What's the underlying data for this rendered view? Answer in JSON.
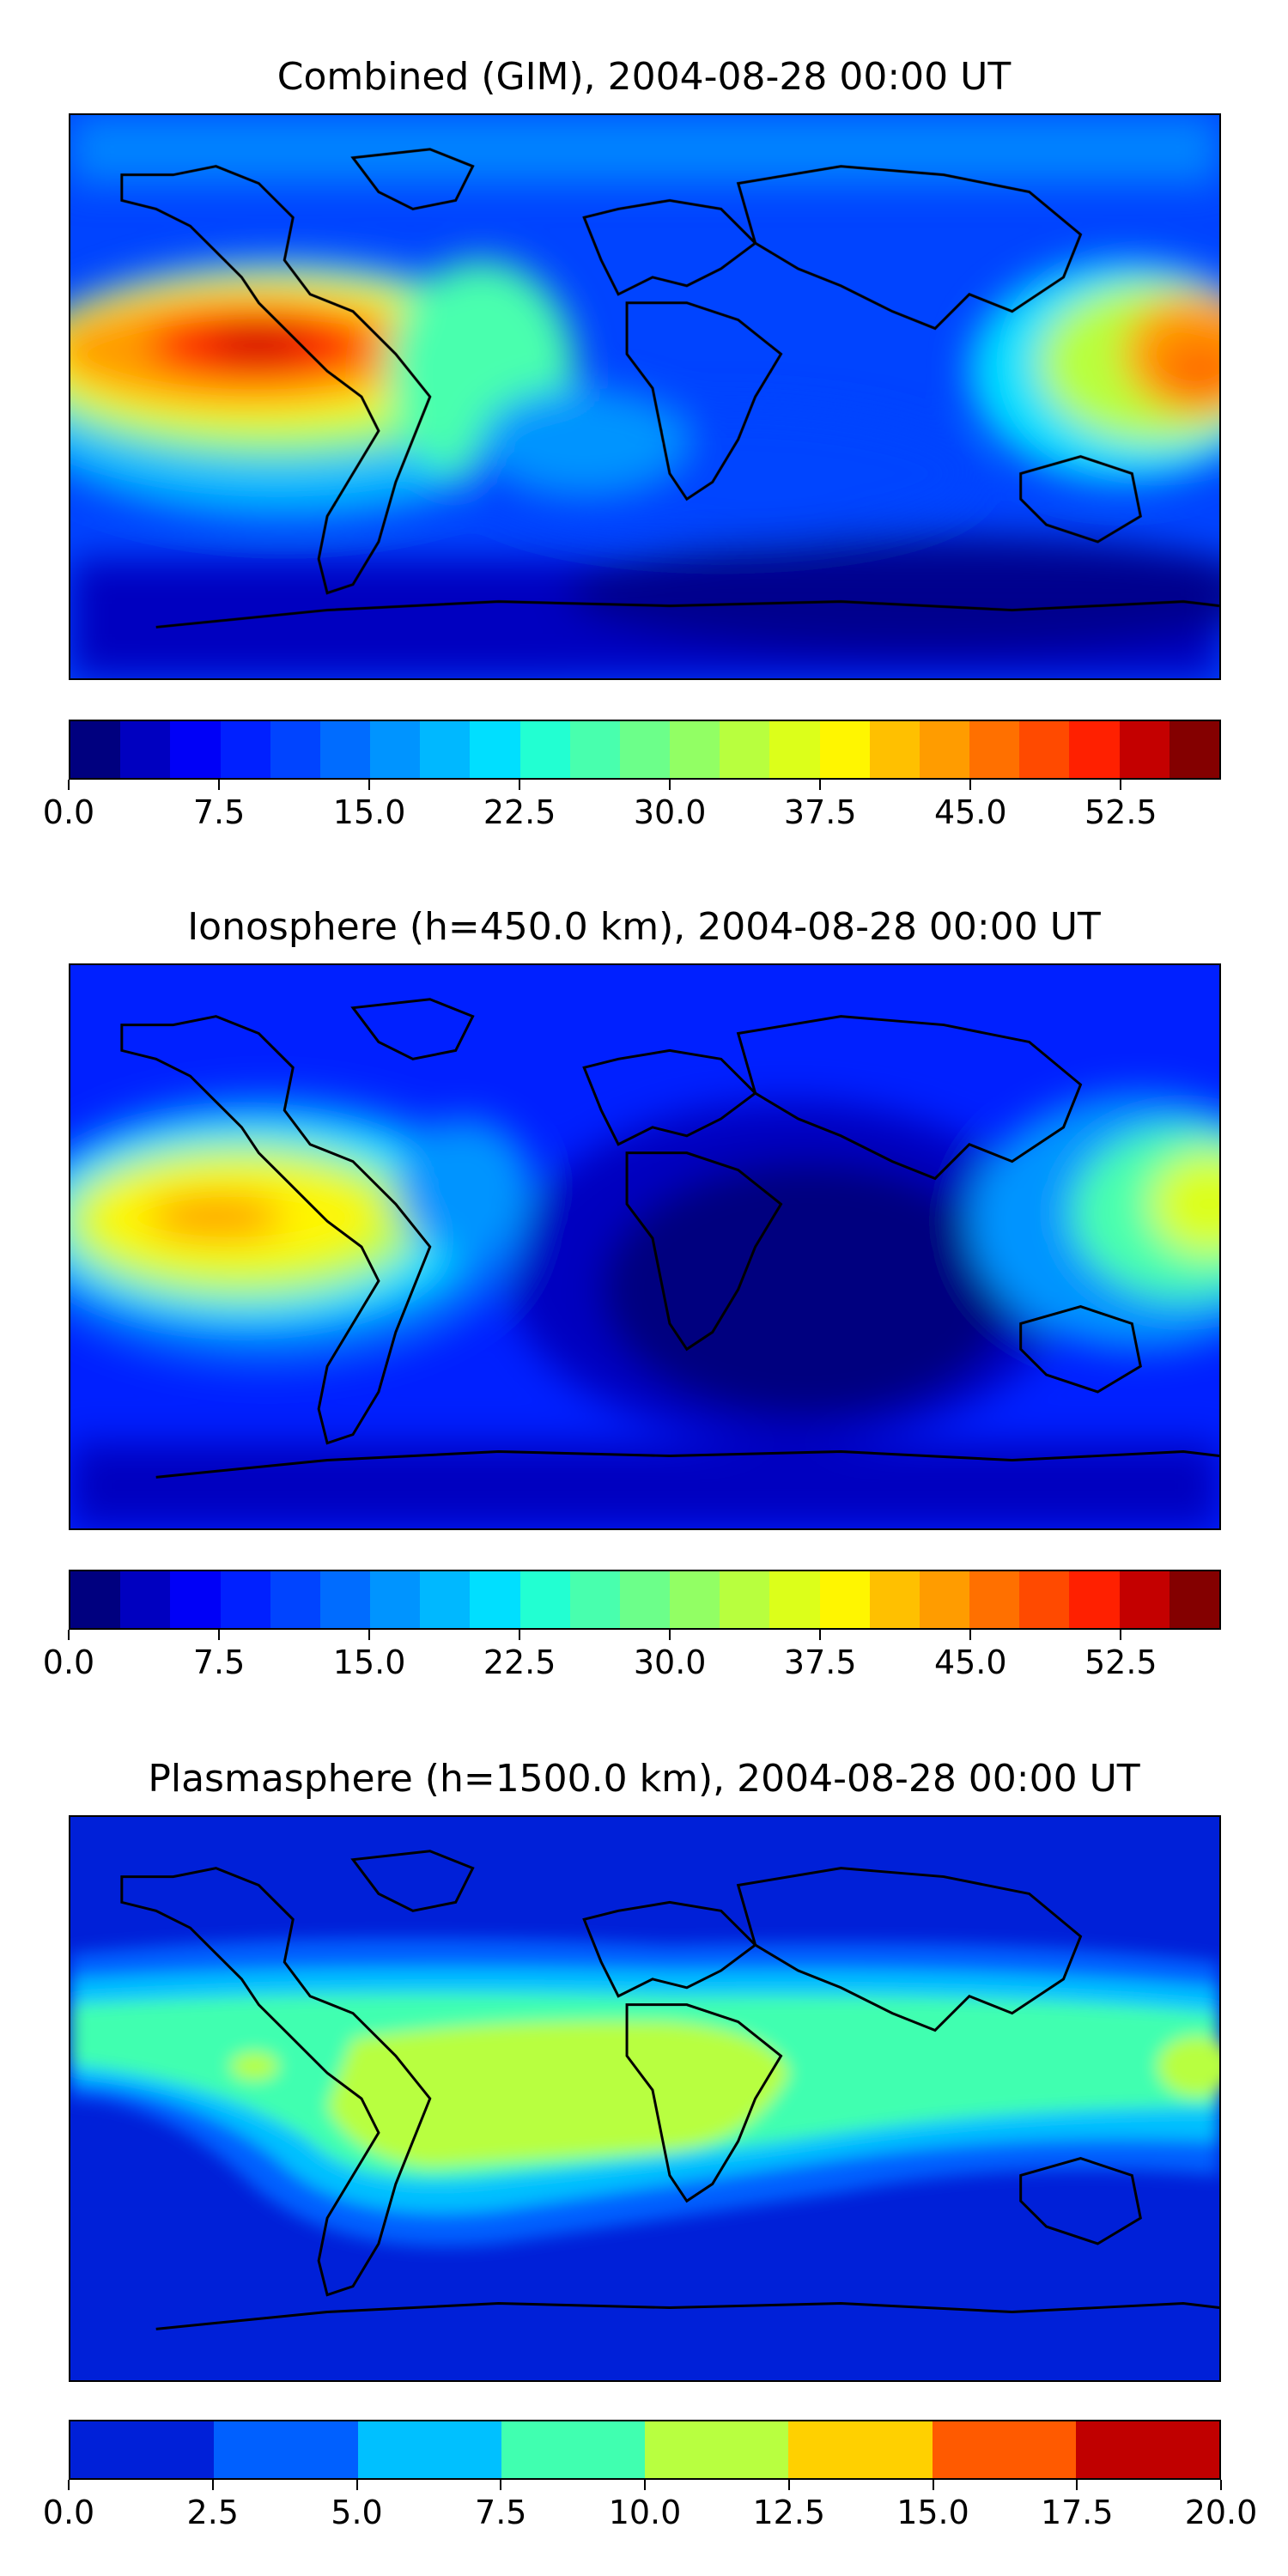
{
  "panels": [
    {
      "id": "combined",
      "title": "Combined (GIM), 2004-08-28 00:00 UT",
      "scale": {
        "min": 0.0,
        "max": 55.0,
        "levels": 22,
        "colors": [
          "#00007f",
          "#0000c0",
          "#0000f7",
          "#0020ff",
          "#0044ff",
          "#006cff",
          "#0094ff",
          "#00b8ff",
          "#00dfff",
          "#22ffd2",
          "#48ffae",
          "#6cff8a",
          "#92ff64",
          "#b8ff3e",
          "#dcff1a",
          "#fff600",
          "#ffc000",
          "#ff9c00",
          "#ff7000",
          "#ff4a00",
          "#ff2000",
          "#c40000",
          "#840000"
        ],
        "tick_labels": [
          "0.0",
          "7.5",
          "15.0",
          "22.5",
          "30.0",
          "37.5",
          "45.0",
          "52.5"
        ],
        "tick_values": [
          0.0,
          7.5,
          15.0,
          22.5,
          30.0,
          37.5,
          45.0,
          52.5
        ]
      }
    },
    {
      "id": "ionosphere",
      "title": "Ionosphere  (h=450.0 km), 2004-08-28 00:00 UT",
      "scale": {
        "min": 0.0,
        "max": 55.0,
        "levels": 22,
        "colors": [
          "#00007f",
          "#0000c0",
          "#0000f7",
          "#0020ff",
          "#0044ff",
          "#006cff",
          "#0094ff",
          "#00b8ff",
          "#00dfff",
          "#22ffd2",
          "#48ffae",
          "#6cff8a",
          "#92ff64",
          "#b8ff3e",
          "#dcff1a",
          "#fff600",
          "#ffc000",
          "#ff9c00",
          "#ff7000",
          "#ff4a00",
          "#ff2000",
          "#c40000",
          "#840000"
        ],
        "tick_labels": [
          "0.0",
          "7.5",
          "15.0",
          "22.5",
          "30.0",
          "37.5",
          "45.0",
          "52.5"
        ],
        "tick_values": [
          0.0,
          7.5,
          15.0,
          22.5,
          30.0,
          37.5,
          45.0,
          52.5
        ]
      }
    },
    {
      "id": "plasmasphere",
      "title": "Plasmasphere (h=1500.0 km), 2004-08-28 00:00 UT",
      "scale": {
        "min": 0.0,
        "max": 20.0,
        "levels": 8,
        "colors": [
          "#0020d8",
          "#0060ff",
          "#00c0ff",
          "#40ffb0",
          "#b8ff40",
          "#ffd000",
          "#ff5a00",
          "#c00000"
        ],
        "tick_labels": [
          "0.0",
          "2.5",
          "5.0",
          "7.5",
          "10.0",
          "12.5",
          "15.0",
          "17.5",
          "20.0"
        ],
        "tick_values": [
          0.0,
          2.5,
          5.0,
          7.5,
          10.0,
          12.5,
          15.0,
          17.5,
          20.0
        ]
      }
    }
  ]
}
